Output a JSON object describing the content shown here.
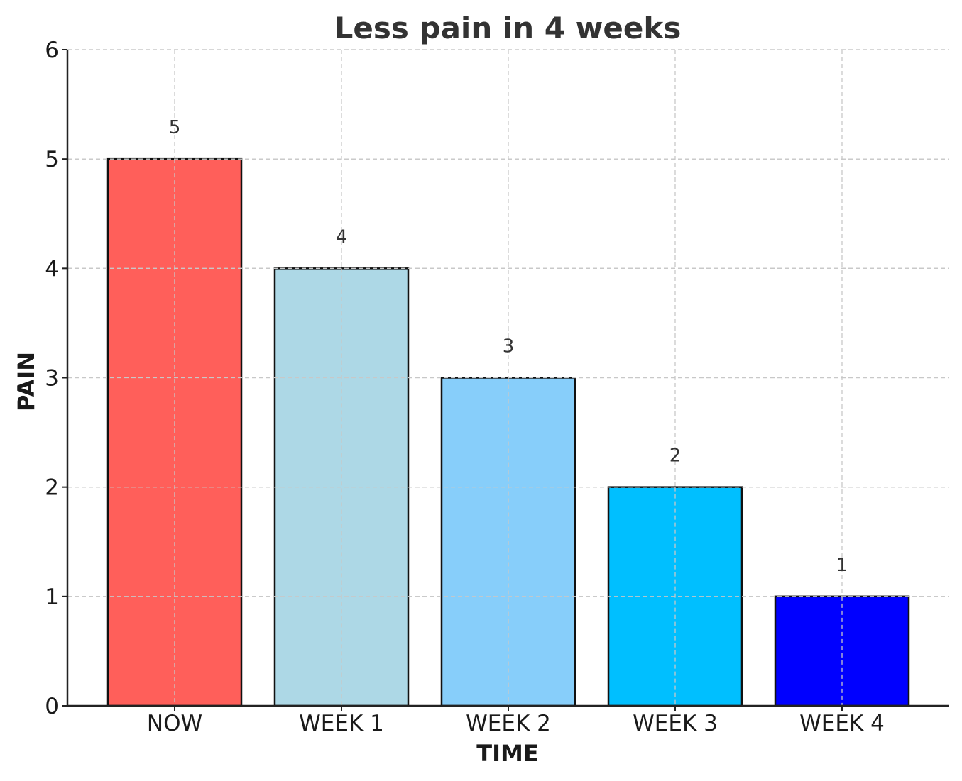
{
  "chart_data": {
    "type": "bar",
    "title": "Less pain in 4 weeks",
    "xlabel": "TIME",
    "ylabel": "PAIN",
    "categories": [
      "NOW",
      "WEEK 1",
      "WEEK 2",
      "WEEK 3",
      "WEEK 4"
    ],
    "values": [
      5,
      4,
      3,
      2,
      1
    ],
    "data_labels": [
      "5",
      "4",
      "3",
      "2",
      "1"
    ],
    "colors": [
      "#ff5f5a",
      "#add8e6",
      "#87cefa",
      "#00bfff",
      "#0000ff"
    ],
    "ylim": [
      0,
      6
    ],
    "yticks": [
      "0",
      "1",
      "2",
      "3",
      "4",
      "5",
      "6"
    ],
    "grid": true
  }
}
